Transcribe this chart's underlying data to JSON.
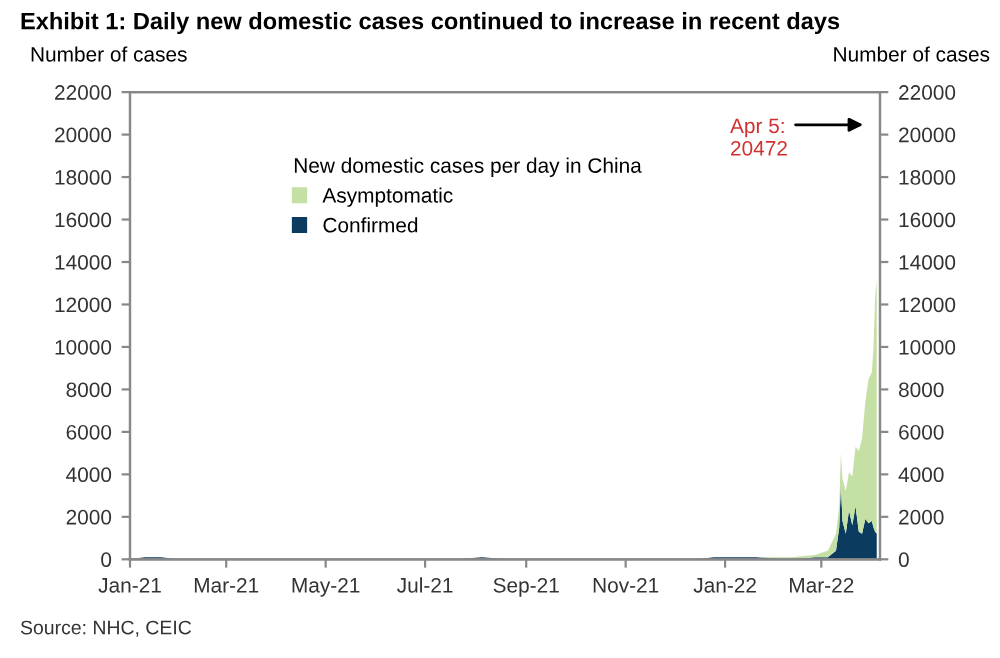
{
  "chart_data": {
    "type": "area",
    "stacked": true,
    "title": "Exhibit 1: Daily new domestic cases continued to increase in recent days",
    "ylabel": "Number of cases",
    "y2label": "Number of cases",
    "legend_title": "New domestic cases per day in China",
    "legend": "top",
    "x": [
      "2021-01-01",
      "2021-01-10",
      "2021-01-20",
      "2021-01-31",
      "2021-02-10",
      "2021-07-20",
      "2021-08-05",
      "2021-08-20",
      "2021-09-10",
      "2021-10-20",
      "2021-11-10",
      "2021-12-15",
      "2021-12-25",
      "2022-01-05",
      "2022-01-20",
      "2022-02-10",
      "2022-02-25",
      "2022-03-05",
      "2022-03-10",
      "2022-03-12",
      "2022-03-13",
      "2022-03-14",
      "2022-03-16",
      "2022-03-18",
      "2022-03-20",
      "2022-03-22",
      "2022-03-24",
      "2022-03-26",
      "2022-03-28",
      "2022-03-30",
      "2022-04-01",
      "2022-04-02",
      "2022-04-03",
      "2022-04-04"
    ],
    "series": [
      {
        "name": "Confirmed",
        "color": "#0c3b60",
        "values": [
          0,
          100,
          100,
          0,
          0,
          0,
          100,
          0,
          0,
          0,
          0,
          0,
          100,
          100,
          100,
          0,
          100,
          100,
          400,
          1500,
          3500,
          1800,
          1200,
          2300,
          1600,
          2500,
          1300,
          1200,
          1900,
          1700,
          1800,
          1500,
          1300,
          1200
        ]
      },
      {
        "name": "Asymptomatic",
        "color": "#c5e0a5",
        "values": [
          0,
          0,
          0,
          0,
          0,
          0,
          0,
          0,
          0,
          0,
          0,
          0,
          0,
          0,
          0,
          100,
          100,
          300,
          800,
          1000,
          1500,
          2000,
          2000,
          1800,
          2300,
          2800,
          3800,
          4500,
          5500,
          6800,
          7000,
          8500,
          11000,
          12000
        ]
      }
    ],
    "xlim": [
      "2021-01-01",
      "2022-04-06"
    ],
    "xticks": [
      {
        "value": "2021-01-01",
        "label": "Jan-21"
      },
      {
        "value": "2021-03-01",
        "label": "Mar-21"
      },
      {
        "value": "2021-05-01",
        "label": "May-21"
      },
      {
        "value": "2021-07-01",
        "label": "Jul-21"
      },
      {
        "value": "2021-09-01",
        "label": "Sep-21"
      },
      {
        "value": "2021-11-01",
        "label": "Nov-21"
      },
      {
        "value": "2022-01-01",
        "label": "Jan-22"
      },
      {
        "value": "2022-03-01",
        "label": "Mar-22"
      }
    ],
    "ylim": [
      0,
      22000
    ],
    "yticks": [
      0,
      2000,
      4000,
      6000,
      8000,
      10000,
      12000,
      14000,
      16000,
      18000,
      20000,
      22000
    ],
    "y2lim": [
      0,
      22000
    ],
    "y2ticks": [
      0,
      2000,
      4000,
      6000,
      8000,
      10000,
      12000,
      14000,
      16000,
      18000,
      20000,
      22000
    ],
    "annotations": [
      "Apr 5:\n20472",
      "Source: NHC, CEIC"
    ]
  }
}
